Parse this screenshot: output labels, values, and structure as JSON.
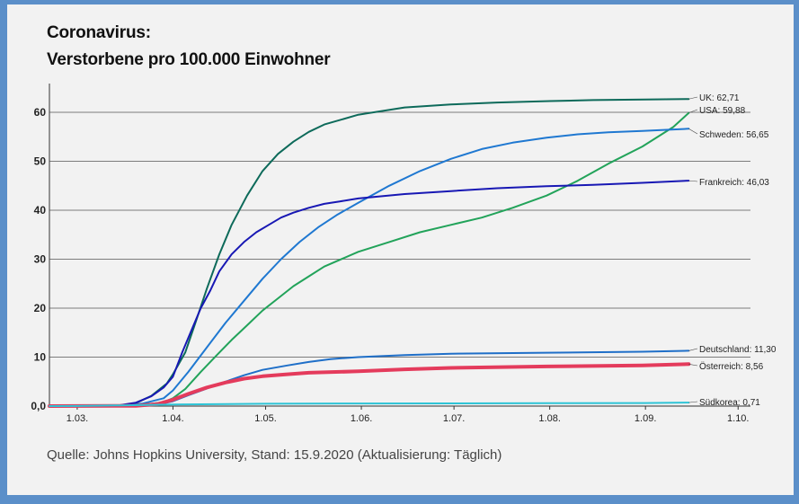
{
  "colors": {
    "background": "#5b8fc9",
    "card": "#f2f2f2",
    "grid": "#555555"
  },
  "chart_data": {
    "type": "line",
    "title": "Coronavirus:",
    "subtitle": "Verstorbene pro 100.000 Einwohner",
    "source": "Quelle: Johns Hopkins University, Stand: 15.9.2020 (Aktualisierung: Täglich)",
    "xlabel": "",
    "ylabel": "",
    "x_ticks": [
      "1.03.",
      "1.04.",
      "1.05.",
      "1.06.",
      "1.07.",
      "1.08.",
      "1.09.",
      "1.10."
    ],
    "x_range": [
      "2020-02-21",
      "2020-10-05"
    ],
    "ylim": [
      0,
      65
    ],
    "y_ticks": [
      0,
      10,
      20,
      30,
      40,
      50,
      60
    ],
    "y_tick_labels": [
      "0,0",
      "10",
      "20",
      "30",
      "40",
      "50",
      "60"
    ],
    "grid": "horizontal",
    "series": [
      {
        "name": "UK",
        "label": "UK: 62,71",
        "color": "#0d6a5a",
        "width": 2,
        "x": [
          "2020-02-21",
          "2020-03-15",
          "2020-03-20",
          "2020-03-25",
          "2020-03-30",
          "2020-04-01",
          "2020-04-05",
          "2020-04-08",
          "2020-04-12",
          "2020-04-16",
          "2020-04-20",
          "2020-04-25",
          "2020-04-30",
          "2020-05-05",
          "2020-05-10",
          "2020-05-15",
          "2020-05-20",
          "2020-05-31",
          "2020-06-15",
          "2020-06-30",
          "2020-07-15",
          "2020-08-01",
          "2020-08-15",
          "2020-09-01",
          "2020-09-15"
        ],
        "y": [
          0,
          0.1,
          0.6,
          2.1,
          4.6,
          6.5,
          11,
          16.5,
          24,
          31,
          37,
          43,
          48,
          51.5,
          54,
          56,
          57.5,
          59.5,
          61,
          61.6,
          62,
          62.3,
          62.5,
          62.6,
          62.71
        ]
      },
      {
        "name": "USA",
        "label": "USA: 59,88",
        "color": "#22a35a",
        "width": 2,
        "x": [
          "2020-02-21",
          "2020-03-15",
          "2020-03-22",
          "2020-03-29",
          "2020-04-01",
          "2020-04-05",
          "2020-04-10",
          "2020-04-15",
          "2020-04-20",
          "2020-04-25",
          "2020-04-30",
          "2020-05-05",
          "2020-05-10",
          "2020-05-15",
          "2020-05-20",
          "2020-05-31",
          "2020-06-10",
          "2020-06-20",
          "2020-06-30",
          "2020-07-10",
          "2020-07-20",
          "2020-07-31",
          "2020-08-10",
          "2020-08-20",
          "2020-08-31",
          "2020-09-10",
          "2020-09-15"
        ],
        "y": [
          0,
          0.05,
          0.2,
          0.8,
          1.6,
          3.5,
          7,
          10.3,
          13.5,
          16.5,
          19.5,
          22,
          24.5,
          26.5,
          28.5,
          31.5,
          33.5,
          35.5,
          37,
          38.5,
          40.5,
          43,
          46,
          49.5,
          53,
          57,
          59.88
        ]
      },
      {
        "name": "Schweden",
        "label": "Schweden: 56,65",
        "color": "#1f78d1",
        "width": 2,
        "x": [
          "2020-02-21",
          "2020-03-15",
          "2020-03-22",
          "2020-03-29",
          "2020-04-01",
          "2020-04-06",
          "2020-04-12",
          "2020-04-18",
          "2020-04-24",
          "2020-04-30",
          "2020-05-06",
          "2020-05-12",
          "2020-05-18",
          "2020-05-24",
          "2020-05-31",
          "2020-06-10",
          "2020-06-20",
          "2020-06-30",
          "2020-07-10",
          "2020-07-20",
          "2020-07-31",
          "2020-08-10",
          "2020-08-20",
          "2020-08-31",
          "2020-09-15"
        ],
        "y": [
          0,
          0.1,
          0.5,
          1.6,
          3.2,
          7,
          12,
          17,
          21.5,
          26,
          30,
          33.5,
          36.5,
          39,
          41.5,
          45,
          48,
          50.5,
          52.5,
          53.8,
          54.8,
          55.5,
          55.9,
          56.2,
          56.65
        ]
      },
      {
        "name": "Frankreich",
        "label": "Frankreich: 46,03",
        "color": "#1818b4",
        "width": 2,
        "x": [
          "2020-02-21",
          "2020-03-10",
          "2020-03-15",
          "2020-03-20",
          "2020-03-25",
          "2020-03-29",
          "2020-04-01",
          "2020-04-04",
          "2020-04-07",
          "2020-04-10",
          "2020-04-13",
          "2020-04-16",
          "2020-04-20",
          "2020-04-24",
          "2020-04-28",
          "2020-05-02",
          "2020-05-06",
          "2020-05-10",
          "2020-05-15",
          "2020-05-20",
          "2020-05-25",
          "2020-05-31",
          "2020-06-15",
          "2020-06-30",
          "2020-07-15",
          "2020-07-31",
          "2020-08-15",
          "2020-08-31",
          "2020-09-15"
        ],
        "y": [
          0,
          0.03,
          0.2,
          0.7,
          2,
          3.8,
          6,
          11,
          15.5,
          20,
          23.5,
          27.5,
          31,
          33.5,
          35.5,
          37,
          38.5,
          39.5,
          40.5,
          41.3,
          41.8,
          42.4,
          43.3,
          43.9,
          44.5,
          44.9,
          45.2,
          45.6,
          46.03
        ]
      },
      {
        "name": "Deutschland",
        "label": "Deutschland: 11,30",
        "color": "#1f6fc8",
        "width": 2,
        "x": [
          "2020-02-21",
          "2020-03-20",
          "2020-03-27",
          "2020-04-01",
          "2020-04-06",
          "2020-04-12",
          "2020-04-18",
          "2020-04-24",
          "2020-04-30",
          "2020-05-08",
          "2020-05-15",
          "2020-05-22",
          "2020-05-31",
          "2020-06-15",
          "2020-06-30",
          "2020-07-31",
          "2020-08-31",
          "2020-09-15"
        ],
        "y": [
          0,
          0.05,
          0.3,
          1,
          2.2,
          3.6,
          5,
          6.3,
          7.4,
          8.3,
          9,
          9.6,
          10,
          10.4,
          10.7,
          10.9,
          11.1,
          11.3
        ]
      },
      {
        "name": "Österreich",
        "label": "Österreich: 8,56",
        "color": "#e43b5c",
        "width": 4,
        "x": [
          "2020-02-21",
          "2020-03-20",
          "2020-03-27",
          "2020-04-01",
          "2020-04-06",
          "2020-04-12",
          "2020-04-18",
          "2020-04-24",
          "2020-04-30",
          "2020-05-08",
          "2020-05-15",
          "2020-05-31",
          "2020-06-15",
          "2020-06-30",
          "2020-07-31",
          "2020-08-31",
          "2020-09-15"
        ],
        "y": [
          0,
          0.05,
          0.4,
          1.3,
          2.5,
          3.8,
          4.8,
          5.6,
          6.1,
          6.5,
          6.8,
          7.1,
          7.5,
          7.8,
          8.1,
          8.3,
          8.56
        ]
      },
      {
        "name": "Südkorea",
        "label": "Südkorea: 0,71",
        "color": "#2ec4d6",
        "width": 2,
        "x": [
          "2020-02-21",
          "2020-03-01",
          "2020-03-15",
          "2020-04-01",
          "2020-05-01",
          "2020-06-01",
          "2020-07-01",
          "2020-08-01",
          "2020-09-01",
          "2020-09-15"
        ],
        "y": [
          0,
          0.02,
          0.15,
          0.33,
          0.48,
          0.53,
          0.55,
          0.58,
          0.63,
          0.71
        ]
      }
    ]
  }
}
